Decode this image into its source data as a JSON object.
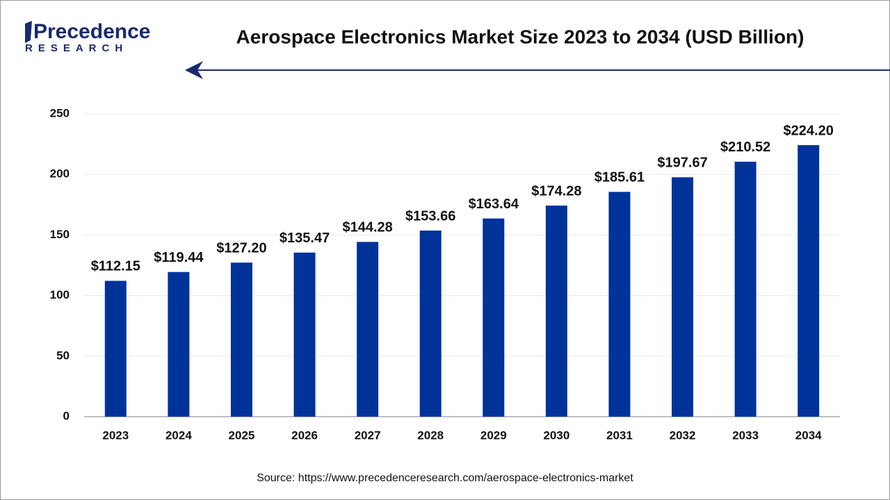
{
  "logo": {
    "name": "Precedence",
    "tagline": "RESEARCH"
  },
  "chart_data": {
    "type": "bar",
    "title": "Aerospace Electronics Market Size 2023 to 2034 (USD Billion)",
    "source": "Source: https://www.precedenceresearch.com/aerospace-electronics-market",
    "categories": [
      "2023",
      "2024",
      "2025",
      "2026",
      "2027",
      "2028",
      "2029",
      "2030",
      "2031",
      "2032",
      "2033",
      "2034"
    ],
    "values": [
      112.15,
      119.44,
      127.2,
      135.47,
      144.28,
      153.66,
      163.64,
      174.28,
      185.61,
      197.67,
      210.52,
      224.2
    ],
    "value_labels": [
      "$112.15",
      "$119.44",
      "$127.20",
      "$135.47",
      "$144.28",
      "$153.66",
      "$163.64",
      "$174.28",
      "$185.61",
      "$197.67",
      "$210.52",
      "$224.20"
    ],
    "color": "#00339a",
    "ylim": [
      0,
      250
    ],
    "yticks": [
      0,
      50,
      100,
      150,
      200,
      250
    ],
    "grid": true
  }
}
